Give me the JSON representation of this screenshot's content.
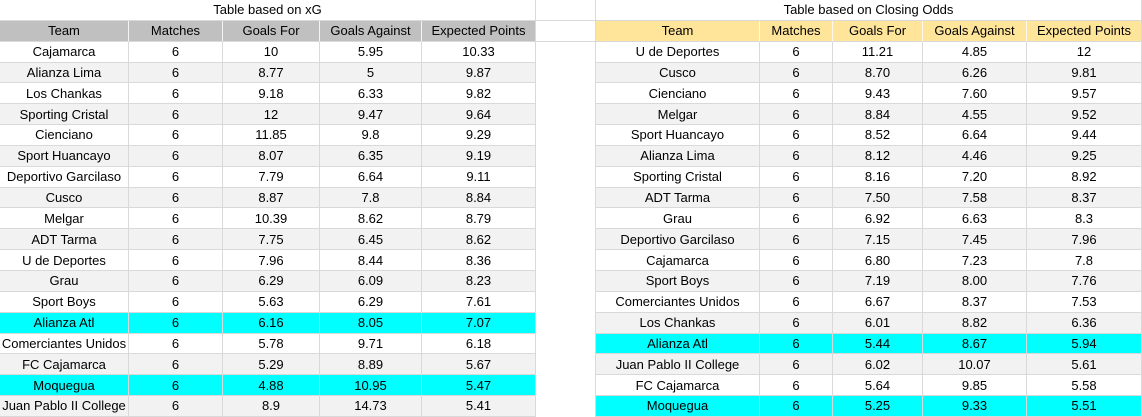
{
  "colors": {
    "header_left": "#c0c0c0",
    "header_right": "#ffe599",
    "highlight": "#00ffff",
    "row_alt": "#f2f2f2",
    "gridline": "#d9d9d9",
    "text": "#000000"
  },
  "left_table": {
    "title": "Table based on xG",
    "columns": [
      "Team",
      "Matches",
      "Goals For",
      "Goals Against",
      "Expected Points"
    ],
    "rows": [
      {
        "cells": [
          "Cajamarca",
          "6",
          "10",
          "5.95",
          "10.33"
        ],
        "highlight": false
      },
      {
        "cells": [
          "Alianza Lima",
          "6",
          "8.77",
          "5",
          "9.87"
        ],
        "highlight": false
      },
      {
        "cells": [
          "Los Chankas",
          "6",
          "9.18",
          "6.33",
          "9.82"
        ],
        "highlight": false
      },
      {
        "cells": [
          "Sporting Cristal",
          "6",
          "12",
          "9.47",
          "9.64"
        ],
        "highlight": false
      },
      {
        "cells": [
          "Cienciano",
          "6",
          "11.85",
          "9.8",
          "9.29"
        ],
        "highlight": false
      },
      {
        "cells": [
          "Sport Huancayo",
          "6",
          "8.07",
          "6.35",
          "9.19"
        ],
        "highlight": false
      },
      {
        "cells": [
          "Deportivo Garcilaso",
          "6",
          "7.79",
          "6.64",
          "9.11"
        ],
        "highlight": false
      },
      {
        "cells": [
          "Cusco",
          "6",
          "8.87",
          "7.8",
          "8.84"
        ],
        "highlight": false
      },
      {
        "cells": [
          "Melgar",
          "6",
          "10.39",
          "8.62",
          "8.79"
        ],
        "highlight": false
      },
      {
        "cells": [
          "ADT Tarma",
          "6",
          "7.75",
          "6.45",
          "8.62"
        ],
        "highlight": false
      },
      {
        "cells": [
          "U de Deportes",
          "6",
          "7.96",
          "8.44",
          "8.36"
        ],
        "highlight": false
      },
      {
        "cells": [
          "Grau",
          "6",
          "6.29",
          "6.09",
          "8.23"
        ],
        "highlight": false
      },
      {
        "cells": [
          "Sport Boys",
          "6",
          "5.63",
          "6.29",
          "7.61"
        ],
        "highlight": false
      },
      {
        "cells": [
          "Alianza Atl",
          "6",
          "6.16",
          "8.05",
          "7.07"
        ],
        "highlight": true
      },
      {
        "cells": [
          "Comerciantes Unidos",
          "6",
          "5.78",
          "9.71",
          "6.18"
        ],
        "highlight": false
      },
      {
        "cells": [
          "FC Cajamarca",
          "6",
          "5.29",
          "8.89",
          "5.67"
        ],
        "highlight": false
      },
      {
        "cells": [
          "Moquegua",
          "6",
          "4.88",
          "10.95",
          "5.47"
        ],
        "highlight": true
      },
      {
        "cells": [
          "Juan Pablo II College",
          "6",
          "8.9",
          "14.73",
          "5.41"
        ],
        "highlight": false
      }
    ]
  },
  "right_table": {
    "title": "Table based on Closing Odds",
    "columns": [
      "Team",
      "Matches",
      "Goals For",
      "Goals Against",
      "Expected Points"
    ],
    "rows": [
      {
        "cells": [
          "U de Deportes",
          "6",
          "11.21",
          "4.85",
          "12"
        ],
        "highlight": false
      },
      {
        "cells": [
          "Cusco",
          "6",
          "8.70",
          "6.26",
          "9.81"
        ],
        "highlight": false
      },
      {
        "cells": [
          "Cienciano",
          "6",
          "9.43",
          "7.60",
          "9.57"
        ],
        "highlight": false
      },
      {
        "cells": [
          "Melgar",
          "6",
          "8.84",
          "4.55",
          "9.52"
        ],
        "highlight": false
      },
      {
        "cells": [
          "Sport Huancayo",
          "6",
          "8.52",
          "6.64",
          "9.44"
        ],
        "highlight": false
      },
      {
        "cells": [
          "Alianza Lima",
          "6",
          "8.12",
          "4.46",
          "9.25"
        ],
        "highlight": false
      },
      {
        "cells": [
          "Sporting Cristal",
          "6",
          "8.16",
          "7.20",
          "8.92"
        ],
        "highlight": false
      },
      {
        "cells": [
          "ADT Tarma",
          "6",
          "7.50",
          "7.58",
          "8.37"
        ],
        "highlight": false
      },
      {
        "cells": [
          "Grau",
          "6",
          "6.92",
          "6.63",
          "8.3"
        ],
        "highlight": false
      },
      {
        "cells": [
          "Deportivo Garcilaso",
          "6",
          "7.15",
          "7.45",
          "7.96"
        ],
        "highlight": false
      },
      {
        "cells": [
          "Cajamarca",
          "6",
          "6.80",
          "7.23",
          "7.8"
        ],
        "highlight": false
      },
      {
        "cells": [
          "Sport Boys",
          "6",
          "7.19",
          "8.00",
          "7.76"
        ],
        "highlight": false
      },
      {
        "cells": [
          "Comerciantes Unidos",
          "6",
          "6.67",
          "8.37",
          "7.53"
        ],
        "highlight": false
      },
      {
        "cells": [
          "Los Chankas",
          "6",
          "6.01",
          "8.82",
          "6.36"
        ],
        "highlight": false
      },
      {
        "cells": [
          "Alianza Atl",
          "6",
          "5.44",
          "8.67",
          "5.94"
        ],
        "highlight": true
      },
      {
        "cells": [
          "Juan Pablo II College",
          "6",
          "6.02",
          "10.07",
          "5.61"
        ],
        "highlight": false
      },
      {
        "cells": [
          "FC Cajamarca",
          "6",
          "5.64",
          "9.85",
          "5.58"
        ],
        "highlight": false
      },
      {
        "cells": [
          "Moquegua",
          "6",
          "5.25",
          "9.33",
          "5.51"
        ],
        "highlight": true
      }
    ]
  }
}
